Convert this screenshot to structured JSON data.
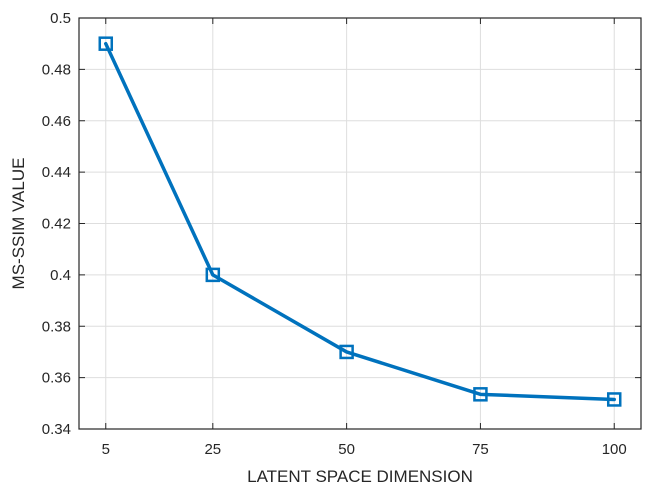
{
  "chart_data": {
    "type": "line",
    "title": "",
    "xlabel": "LATENT SPACE DIMENSION",
    "ylabel": "MS-SSIM VALUE",
    "x": [
      5,
      25,
      50,
      75,
      100
    ],
    "series": [
      {
        "values": [
          0.49,
          0.4,
          0.37,
          0.3535,
          0.3515
        ],
        "color": "#0072BD",
        "marker": "square"
      }
    ],
    "xticks": [
      5,
      25,
      50,
      75,
      100
    ],
    "yticks": [
      0.34,
      0.36,
      0.38,
      0.4,
      0.42,
      0.44,
      0.46,
      0.48,
      0.5
    ],
    "xtick_labels": [
      "5",
      "25",
      "50",
      "75",
      "100"
    ],
    "ytick_labels": [
      "0.34",
      "0.36",
      "0.38",
      "0.4",
      "0.42",
      "0.44",
      "0.46",
      "0.48",
      "0.5"
    ],
    "xlim": [
      0,
      105
    ],
    "ylim": [
      0.34,
      0.5
    ],
    "grid": true,
    "legend": "none",
    "colors": {
      "line": "#0072BD",
      "grid": "#dedede",
      "axis": "#262626"
    }
  }
}
